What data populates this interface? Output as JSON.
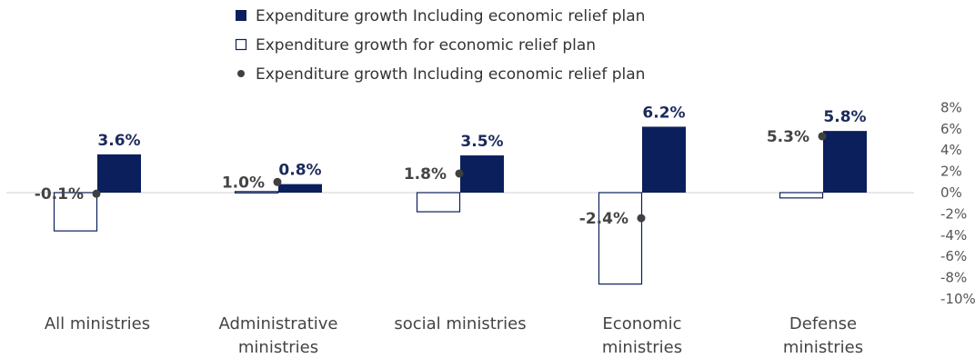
{
  "chart_data": {
    "type": "bar",
    "categories": [
      [
        "All ministries"
      ],
      [
        "Administrative",
        "ministries"
      ],
      [
        "social ministries"
      ],
      [
        "Economic",
        "ministries"
      ],
      [
        "Defense",
        "ministries"
      ]
    ],
    "series": [
      {
        "name": "Expenditure growth Including economic relief plan",
        "kind": "bar-filled",
        "color": "#0b1f5c",
        "values": [
          3.6,
          0.8,
          3.5,
          6.2,
          5.8
        ],
        "labels": [
          "3.6%",
          "0.8%",
          "3.5%",
          "6.2%",
          "5.8%"
        ]
      },
      {
        "name": "Expenditure growth for economic relief plan",
        "kind": "bar-outline",
        "color": "#0b1f5c",
        "values": [
          -3.6,
          0.1,
          -1.8,
          -8.6,
          -0.5
        ]
      },
      {
        "name": "Expenditure growth Including economic relief plan",
        "kind": "point",
        "color": "#404040",
        "values": [
          -0.1,
          1.0,
          1.8,
          -2.4,
          5.3
        ],
        "labels": [
          "-0.1%",
          "1.0%",
          "1.8%",
          "-2.4%",
          "5.3%"
        ]
      }
    ],
    "ylim": [
      -10,
      8
    ],
    "yticks": [
      8,
      6,
      4,
      2,
      0,
      -2,
      -4,
      -6,
      -8,
      -10
    ],
    "ytick_labels": [
      "8%",
      "6%",
      "4%",
      "2%",
      "0%",
      "-2%",
      "-4%",
      "-6%",
      "-8%",
      "-10%"
    ],
    "yaxis_position": "right",
    "legend_position": "top",
    "grid": false,
    "title": "",
    "xlabel": "",
    "ylabel": ""
  }
}
